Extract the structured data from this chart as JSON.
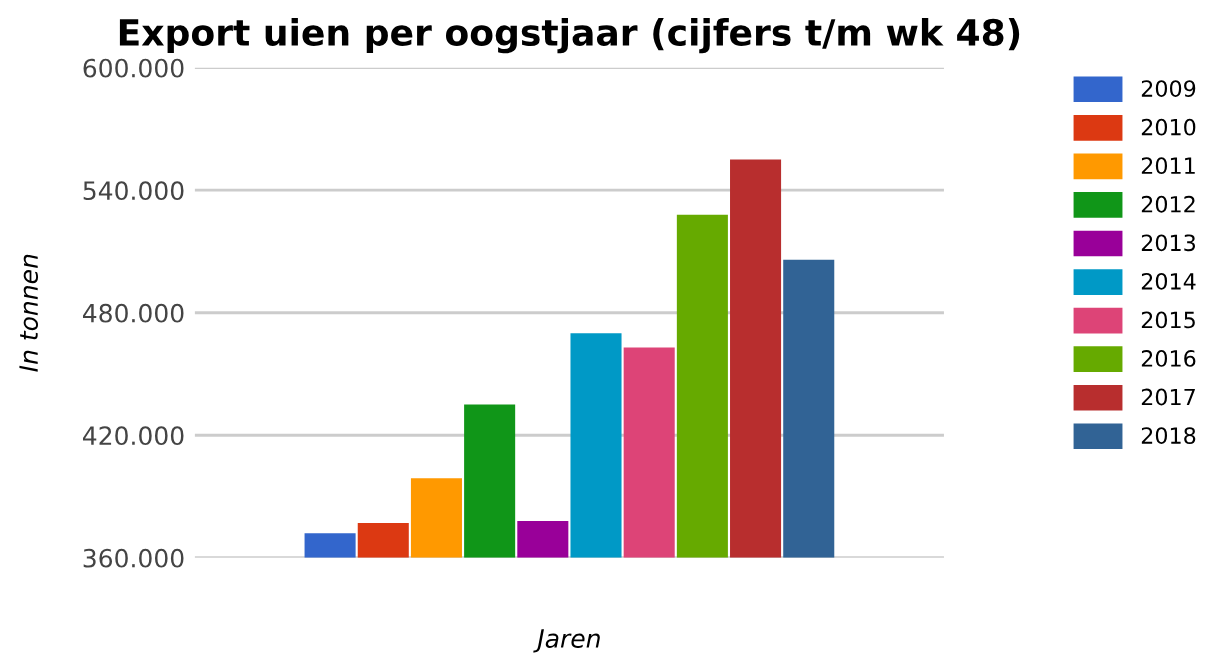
{
  "chart_data": {
    "type": "bar",
    "title": "Export uien per oogstjaar (cijfers t/m wk 48)",
    "xlabel": "Jaren",
    "ylabel": "In tonnen",
    "categories": [
      null
    ],
    "series": [
      {
        "name": "2009",
        "color": "#3366cc",
        "values": [
          372000
        ]
      },
      {
        "name": "2010",
        "color": "#dc3912",
        "values": [
          377000
        ]
      },
      {
        "name": "2011",
        "color": "#ff9900",
        "values": [
          399000
        ]
      },
      {
        "name": "2012",
        "color": "#109618",
        "values": [
          435000
        ]
      },
      {
        "name": "2013",
        "color": "#990099",
        "values": [
          378000
        ]
      },
      {
        "name": "2014",
        "color": "#0099c6",
        "values": [
          470000
        ]
      },
      {
        "name": "2015",
        "color": "#dd4477",
        "values": [
          463000
        ]
      },
      {
        "name": "2016",
        "color": "#66aa00",
        "values": [
          528000
        ]
      },
      {
        "name": "2017",
        "color": "#b82e2e",
        "values": [
          555000
        ]
      },
      {
        "name": "2018",
        "color": "#316395",
        "values": [
          506000
        ]
      }
    ],
    "ylim": [
      360000,
      600000
    ],
    "yticks": [
      {
        "value": 360000,
        "label": "360.000"
      },
      {
        "value": 420000,
        "label": "420.000"
      },
      {
        "value": 480000,
        "label": "480.000"
      },
      {
        "value": 540000,
        "label": "540.000"
      },
      {
        "value": 600000,
        "label": "600.000"
      }
    ],
    "grid": "y",
    "legend": "right"
  }
}
